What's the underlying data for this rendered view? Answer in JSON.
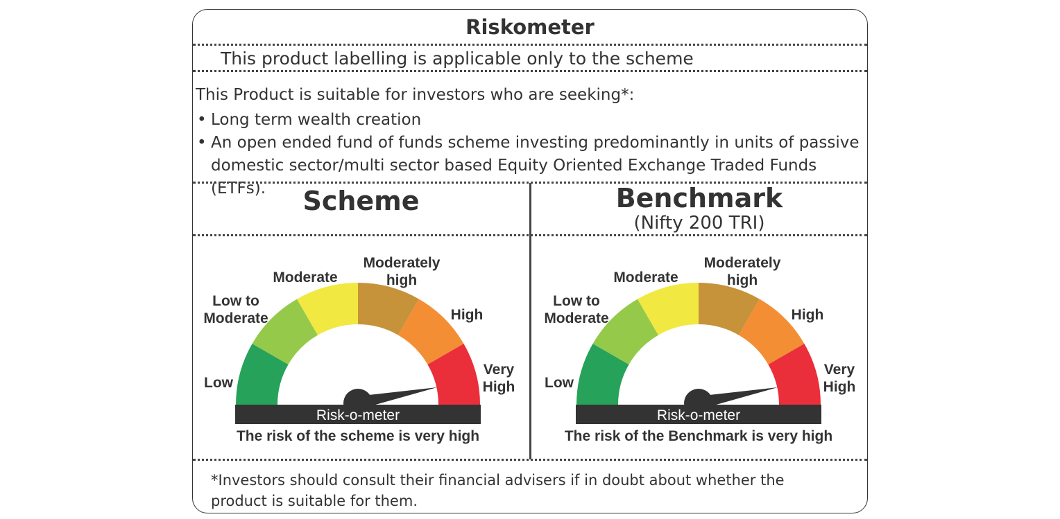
{
  "header": {
    "title": "Riskometer",
    "subtitle": "This product labelling is applicable only to the scheme"
  },
  "suitability": {
    "intro": "This Product is suitable for investors who are seeking*:",
    "bullets": [
      "Long term wealth creation",
      "An open ended fund of funds scheme investing predominantly in units of passive domestic sector/multi sector based Equity Oriented Exchange Traded Funds (ETFs)."
    ]
  },
  "scheme": {
    "heading": "Scheme",
    "level": "Very High",
    "caption": "The risk of the scheme is very high"
  },
  "benchmark": {
    "heading": "Benchmark",
    "subheading": "(Nifty 200 TRI)",
    "level": "Very High",
    "caption": "The risk of the Benchmark is very high"
  },
  "meter": {
    "bar_label": "Risk-o-meter",
    "labels": {
      "low": "Low",
      "low_to_moderate_1": "Low to",
      "low_to_moderate_2": "Moderate",
      "moderate": "Moderate",
      "moderately_high_1": "Moderately",
      "moderately_high_2": "high",
      "high": "High",
      "very_high_1": "Very",
      "very_high_2": "High"
    },
    "segment_colors": [
      "#27a25a",
      "#95c94a",
      "#f2e842",
      "#c6933b",
      "#f48e35",
      "#ea2e3a"
    ],
    "bar_color": "#333333"
  },
  "footnote": "*Investors should consult their financial advisers if in doubt about whether the product is suitable for them."
}
